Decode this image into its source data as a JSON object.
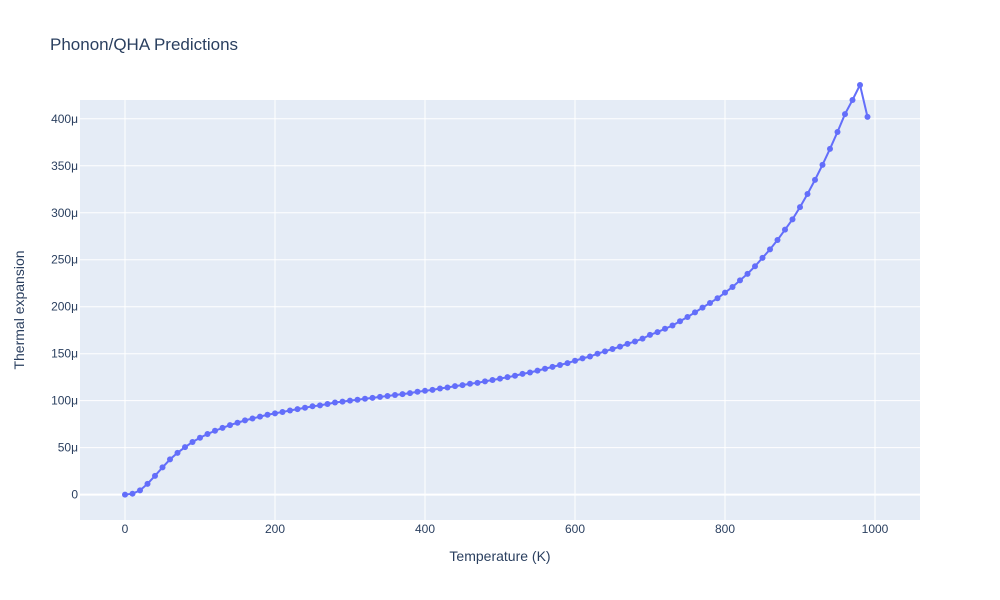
{
  "chart_data": {
    "type": "line",
    "title": "Phonon/QHA Predictions",
    "xlabel": "Temperature (K)",
    "ylabel": "Thermal expansion",
    "xlim": [
      -60,
      1060
    ],
    "ylim": [
      -2.7e-05,
      0.00042
    ],
    "x_ticks": [
      0,
      200,
      400,
      600,
      800,
      1000
    ],
    "x_tick_labels": [
      "0",
      "200",
      "400",
      "600",
      "800",
      "1000"
    ],
    "y_ticks": [
      0,
      5e-05,
      0.0001,
      0.00015,
      0.0002,
      0.00025,
      0.0003,
      0.00035,
      0.0004
    ],
    "y_tick_labels": [
      "0",
      "50μ",
      "100μ",
      "150μ",
      "200μ",
      "250μ",
      "300μ",
      "350μ",
      "400μ"
    ],
    "grid": true,
    "line_color": "#636efa",
    "plot_bg": "#e5ecf6",
    "series": [
      {
        "x": [
          0,
          10,
          20,
          30,
          40,
          50,
          60,
          70,
          80,
          90,
          100,
          110,
          120,
          130,
          140,
          150,
          160,
          170,
          180,
          190,
          200,
          210,
          220,
          230,
          240,
          250,
          260,
          270,
          280,
          290,
          300,
          310,
          320,
          330,
          340,
          350,
          360,
          370,
          380,
          390,
          400,
          410,
          420,
          430,
          440,
          450,
          460,
          470,
          480,
          490,
          500,
          510,
          520,
          530,
          540,
          550,
          560,
          570,
          580,
          590,
          600,
          610,
          620,
          630,
          640,
          650,
          660,
          670,
          680,
          690,
          700,
          710,
          720,
          730,
          740,
          750,
          760,
          770,
          780,
          790,
          800,
          810,
          820,
          830,
          840,
          850,
          860,
          870,
          880,
          890,
          900,
          910,
          920,
          930,
          940,
          950,
          960,
          970,
          980,
          990
        ],
        "y": [
          0,
          1e-06,
          4.5e-06,
          1.15e-05,
          2e-05,
          2.9e-05,
          3.75e-05,
          4.45e-05,
          5.05e-05,
          5.6e-05,
          6.05e-05,
          6.45e-05,
          6.8e-05,
          7.1e-05,
          7.4e-05,
          7.65e-05,
          7.9e-05,
          8.1e-05,
          8.3e-05,
          8.5e-05,
          8.65e-05,
          8.8e-05,
          8.95e-05,
          9.1e-05,
          9.25e-05,
          9.4e-05,
          9.5e-05,
          9.65e-05,
          9.8e-05,
          9.9e-05,
          0.0001,
          0.000101,
          0.000102,
          0.000103,
          0.000104,
          0.000105,
          0.000106,
          0.000107,
          0.000108,
          0.0001095,
          0.0001105,
          0.0001115,
          0.000113,
          0.000114,
          0.0001155,
          0.0001165,
          0.000118,
          0.000119,
          0.0001205,
          0.000122,
          0.0001235,
          0.000125,
          0.0001265,
          0.0001285,
          0.00013,
          0.000132,
          0.000134,
          0.000136,
          0.000138,
          0.00014,
          0.0001425,
          0.000145,
          0.000147,
          0.00015,
          0.0001525,
          0.000155,
          0.0001575,
          0.0001605,
          0.000163,
          0.000166,
          0.00017,
          0.000173,
          0.0001765,
          0.00018,
          0.0001845,
          0.000189,
          0.000194,
          0.000199,
          0.000204,
          0.000209,
          0.000215,
          0.000221,
          0.000228,
          0.000235,
          0.000243,
          0.000252,
          0.000261,
          0.000271,
          0.000282,
          0.000293,
          0.000306,
          0.00032,
          0.000335,
          0.000351,
          0.000368,
          0.000386,
          0.000405,
          0.00042,
          0.000436,
          0.000402
        ]
      }
    ]
  }
}
